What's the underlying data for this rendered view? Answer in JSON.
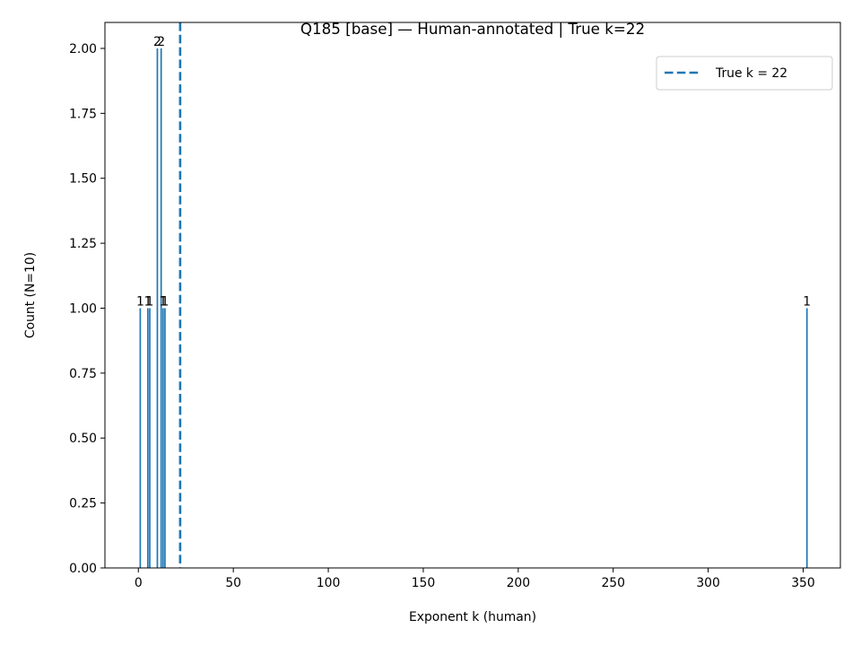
{
  "chart_data": {
    "type": "bar",
    "title": "Q185 [base] — Human-annotated | True k=22",
    "xlabel": "Exponent k (human)",
    "ylabel": "Count (N=10)",
    "xlim": [
      -17.6,
      369.6
    ],
    "ylim": [
      0,
      2.1
    ],
    "xticks": [
      0,
      50,
      100,
      150,
      200,
      250,
      300,
      350
    ],
    "yticks": [
      0.0,
      0.25,
      0.5,
      0.75,
      1.0,
      1.25,
      1.5,
      1.75,
      2.0
    ],
    "ytick_labels": [
      "0.00",
      "0.25",
      "0.50",
      "0.75",
      "1.00",
      "1.25",
      "1.50",
      "1.75",
      "2.00"
    ],
    "bar_width": 0.8,
    "bars": [
      {
        "x": 1,
        "value": 1,
        "label": "1"
      },
      {
        "x": 5,
        "value": 1,
        "label": "1"
      },
      {
        "x": 6,
        "value": 1,
        "label": "1"
      },
      {
        "x": 10,
        "value": 2,
        "label": "2"
      },
      {
        "x": 12,
        "value": 2,
        "label": "2"
      },
      {
        "x": 13,
        "value": 1,
        "label": "1"
      },
      {
        "x": 14,
        "value": 1,
        "label": "1"
      },
      {
        "x": 352,
        "value": 1,
        "label": "1"
      }
    ],
    "bar_color": "#1f77b4",
    "reference_line": {
      "x": 22,
      "label": "True k = 22",
      "color": "#1f77b4",
      "style": "dashed"
    },
    "legend": {
      "position": "top-right",
      "entries": [
        "True k = 22"
      ]
    },
    "grid": false
  }
}
